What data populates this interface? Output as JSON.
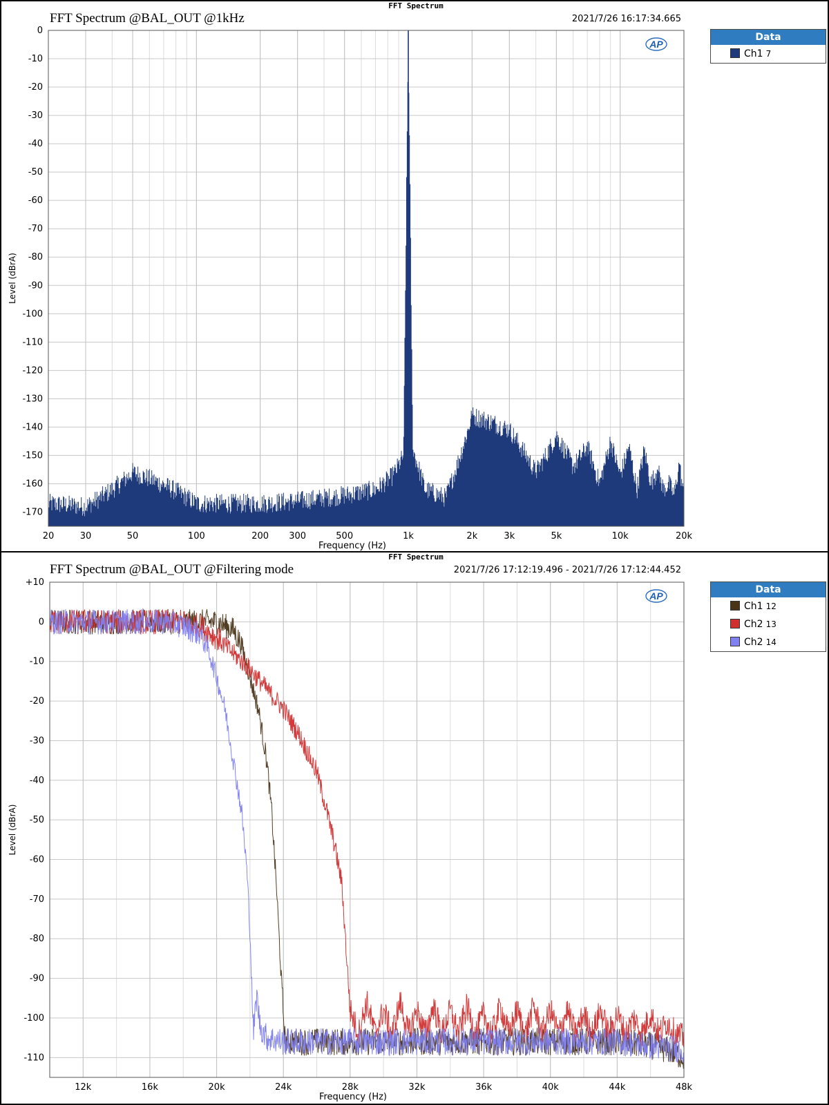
{
  "chart_data": [
    {
      "type": "line",
      "caption": "FFT Spectrum",
      "title": "FFT Spectrum @BAL_OUT @1kHz",
      "timestamp": "2021/7/26 16:17:34.665",
      "xlabel": "Frequency (Hz)",
      "ylabel": "Level (dBrA)",
      "xscale": "log",
      "xlim": [
        20,
        20000
      ],
      "ylim": [
        -175,
        0
      ],
      "grid": true,
      "legend_position": "right of plot",
      "legend_title": "Data",
      "x_ticks": [
        {
          "v": 20,
          "label": "20"
        },
        {
          "v": 30,
          "label": "30"
        },
        {
          "v": 50,
          "label": "50"
        },
        {
          "v": 100,
          "label": "100"
        },
        {
          "v": 200,
          "label": "200"
        },
        {
          "v": 300,
          "label": "300"
        },
        {
          "v": 500,
          "label": "500"
        },
        {
          "v": 1000,
          "label": "1k"
        },
        {
          "v": 2000,
          "label": "2k"
        },
        {
          "v": 3000,
          "label": "3k"
        },
        {
          "v": 5000,
          "label": "5k"
        },
        {
          "v": 10000,
          "label": "10k"
        },
        {
          "v": 20000,
          "label": "20k"
        }
      ],
      "y_ticks": [
        {
          "v": 0,
          "label": "0"
        },
        {
          "v": -10,
          "label": "-10"
        },
        {
          "v": -20,
          "label": "-20"
        },
        {
          "v": -30,
          "label": "-30"
        },
        {
          "v": -40,
          "label": "-40"
        },
        {
          "v": -50,
          "label": "-50"
        },
        {
          "v": -60,
          "label": "-60"
        },
        {
          "v": -70,
          "label": "-70"
        },
        {
          "v": -80,
          "label": "-80"
        },
        {
          "v": -90,
          "label": "-90"
        },
        {
          "v": -100,
          "label": "-100"
        },
        {
          "v": -110,
          "label": "-110"
        },
        {
          "v": -120,
          "label": "-120"
        },
        {
          "v": -130,
          "label": "-130"
        },
        {
          "v": -140,
          "label": "-140"
        },
        {
          "v": -150,
          "label": "-150"
        },
        {
          "v": -160,
          "label": "-160"
        },
        {
          "v": -170,
          "label": "-170"
        }
      ],
      "series": [
        {
          "name": "Ch1",
          "legend_number": "7",
          "color": "#1f3a7a",
          "style": "spectrum-bars",
          "x": [
            20,
            30,
            50,
            100,
            200,
            300,
            500,
            700,
            850,
            950,
            1000,
            1050,
            1200,
            1500,
            2000,
            3000,
            4000,
            5000,
            6000,
            7000,
            8000,
            9000,
            10000,
            11000,
            12000,
            13000,
            14000,
            15000,
            16000,
            17000,
            18000,
            19000,
            20000
          ],
          "y": [
            -167,
            -168,
            -156,
            -167,
            -167,
            -166,
            -164,
            -162,
            -157,
            -150,
            0,
            -148,
            -162,
            -165,
            -136,
            -141,
            -156,
            -143,
            -154,
            -147,
            -160,
            -145,
            -157,
            -147,
            -162,
            -148,
            -160,
            -155,
            -162,
            -160,
            -164,
            -153,
            -165
          ]
        }
      ]
    },
    {
      "type": "line",
      "caption": "FFT Spectrum",
      "title": "FFT Spectrum @BAL_OUT @Filtering mode",
      "timestamp": "2021/7/26 17:12:19.496 - 2021/7/26 17:12:44.452",
      "xlabel": "Frequency (Hz)",
      "ylabel": "Level (dBrA)",
      "xscale": "linear",
      "xlim": [
        10000,
        48000
      ],
      "ylim": [
        -115,
        10
      ],
      "grid": true,
      "legend_position": "right of plot",
      "legend_title": "Data",
      "x_ticks": [
        {
          "v": 12000,
          "label": "12k"
        },
        {
          "v": 16000,
          "label": "16k"
        },
        {
          "v": 20000,
          "label": "20k"
        },
        {
          "v": 24000,
          "label": "24k"
        },
        {
          "v": 28000,
          "label": "28k"
        },
        {
          "v": 32000,
          "label": "32k"
        },
        {
          "v": 36000,
          "label": "36k"
        },
        {
          "v": 40000,
          "label": "40k"
        },
        {
          "v": 44000,
          "label": "44k"
        },
        {
          "v": 48000,
          "label": "48k"
        }
      ],
      "y_ticks": [
        {
          "v": 10,
          "label": "+10"
        },
        {
          "v": 0,
          "label": "0"
        },
        {
          "v": -10,
          "label": "-10"
        },
        {
          "v": -20,
          "label": "-20"
        },
        {
          "v": -30,
          "label": "-30"
        },
        {
          "v": -40,
          "label": "-40"
        },
        {
          "v": -50,
          "label": "-50"
        },
        {
          "v": -60,
          "label": "-60"
        },
        {
          "v": -70,
          "label": "-70"
        },
        {
          "v": -80,
          "label": "-80"
        },
        {
          "v": -90,
          "label": "-90"
        },
        {
          "v": -100,
          "label": "-100"
        },
        {
          "v": -110,
          "label": "-110"
        }
      ],
      "series": [
        {
          "name": "Ch1",
          "legend_number": "12",
          "color": "#4a3418",
          "x": [
            10000,
            14000,
            18000,
            19000,
            20000,
            21000,
            21500,
            22000,
            22500,
            23000,
            23300,
            23600,
            23900,
            24100,
            26000,
            30000,
            36000,
            40000,
            44000,
            46000,
            47000,
            48000
          ],
          "y": [
            0,
            0,
            0,
            0,
            0,
            -2,
            -6,
            -14,
            -22,
            -35,
            -48,
            -68,
            -92,
            -106,
            -106,
            -106,
            -106,
            -106,
            -106,
            -107,
            -108,
            -110
          ]
        },
        {
          "name": "Ch2",
          "legend_number": "13",
          "color": "#d03030",
          "x": [
            10000,
            14000,
            18000,
            19000,
            20000,
            21000,
            22000,
            23000,
            24000,
            25000,
            26000,
            26500,
            27000,
            27500,
            28000,
            28500,
            29000,
            29500,
            30000,
            30500,
            31000,
            31500,
            32000,
            32500,
            33000,
            33500,
            34000,
            34500,
            35000,
            35500,
            36000,
            36500,
            37000,
            37500,
            38000,
            38500,
            39000,
            39500,
            40000,
            40500,
            41000,
            41500,
            42000,
            42500,
            43000,
            43500,
            44000,
            44500,
            45000,
            45500,
            46000,
            46500,
            47000,
            47500,
            48000
          ],
          "y": [
            0,
            0,
            0,
            -1,
            -4,
            -8,
            -12,
            -17,
            -22,
            -29,
            -38,
            -46,
            -55,
            -66,
            -98,
            -104,
            -96,
            -104,
            -98,
            -104,
            -96,
            -104,
            -98,
            -104,
            -97,
            -104,
            -98,
            -104,
            -97,
            -104,
            -99,
            -104,
            -97,
            -104,
            -98,
            -104,
            -97,
            -104,
            -98,
            -104,
            -98,
            -104,
            -99,
            -104,
            -98,
            -104,
            -99,
            -104,
            -100,
            -104,
            -99,
            -104,
            -101,
            -104,
            -105
          ]
        },
        {
          "name": "Ch2",
          "legend_number": "14",
          "color": "#8080f0",
          "x": [
            10000,
            14000,
            17000,
            18000,
            19000,
            19500,
            20000,
            20500,
            21000,
            21500,
            21800,
            22000,
            22200,
            22400,
            22600,
            23000,
            24000,
            28000,
            32000,
            36000,
            40000,
            44000,
            46000,
            48000
          ],
          "y": [
            0,
            0,
            0,
            -1,
            -3,
            -7,
            -14,
            -22,
            -35,
            -48,
            -62,
            -78,
            -104,
            -94,
            -102,
            -105,
            -106,
            -106,
            -106,
            -106,
            -106,
            -106,
            -107,
            -108
          ]
        }
      ]
    }
  ],
  "logo": "AP"
}
